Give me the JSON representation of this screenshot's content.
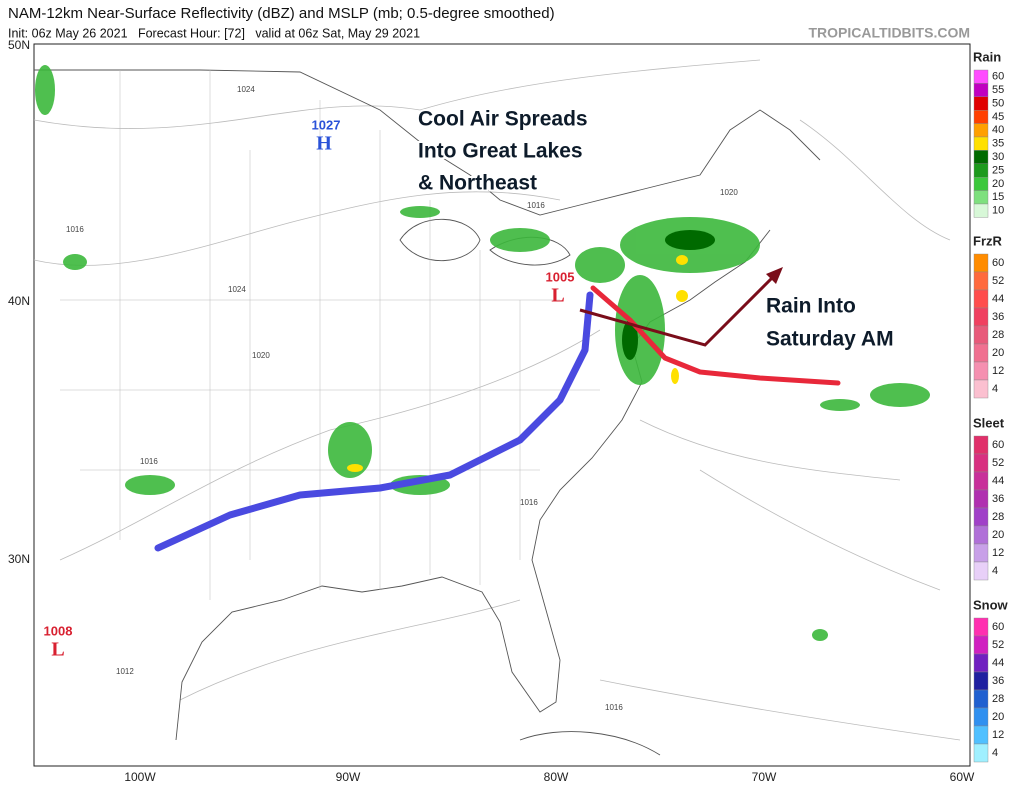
{
  "header": {
    "title": "NAM-12km Near-Surface Reflectivity (dBZ) and MSLP (mb; 0.5-degree smoothed)",
    "subtitle": "Init: 06z May 26 2021   Forecast Hour: [72]   valid at 06z Sat, May 29 2021",
    "watermark": "TROPICALTIDBITS.COM"
  },
  "map": {
    "lat_labels": [
      "50N",
      "40N",
      "30N"
    ],
    "lon_labels": [
      "100W",
      "90W",
      "80W",
      "70W",
      "60W"
    ],
    "pressure_centers": [
      {
        "value": "1027",
        "symbol": "H"
      },
      {
        "value": "1005",
        "symbol": "L"
      },
      {
        "value": "1008",
        "symbol": "L"
      }
    ],
    "isobar_labels": [
      "1024",
      "1016",
      "1024",
      "1020",
      "1016",
      "1016",
      "1020",
      "1012",
      "1016",
      "1016"
    ],
    "annotations": [
      {
        "lines": [
          "Cool Air Spreads",
          "Into Great Lakes",
          "& Northeast"
        ]
      },
      {
        "lines": [
          "Rain Into",
          "Saturday AM"
        ]
      }
    ]
  },
  "legend": [
    {
      "title": "Rain",
      "ticks": [
        60,
        55,
        50,
        45,
        40,
        35,
        30,
        25,
        20,
        15,
        10
      ],
      "colors": [
        "#ff4dff",
        "#c000c0",
        "#e00000",
        "#ff4000",
        "#ffa000",
        "#ffe000",
        "#006a00",
        "#1d9a1d",
        "#3cc83c",
        "#7ee07e",
        "#d8f8d8"
      ]
    },
    {
      "title": "FrzR",
      "ticks": [
        60,
        52,
        44,
        36,
        28,
        20,
        12,
        4
      ],
      "colors": [
        "#ff8c00",
        "#ff6a3d",
        "#ff4d4d",
        "#f04060",
        "#e85a7a",
        "#f07090",
        "#f590b0",
        "#fbc0d0"
      ]
    },
    {
      "title": "Sleet",
      "ticks": [
        60,
        52,
        44,
        36,
        28,
        20,
        12,
        4
      ],
      "colors": [
        "#e0306a",
        "#d83080",
        "#c8309a",
        "#b030b0",
        "#a040c8",
        "#b070d8",
        "#c8a0e8",
        "#e8d0f8"
      ]
    },
    {
      "title": "Snow",
      "ticks": [
        60,
        52,
        44,
        36,
        28,
        20,
        12,
        4
      ],
      "colors": [
        "#ff30b0",
        "#d020c0",
        "#7020c0",
        "#2020a0",
        "#2060d0",
        "#3090f0",
        "#50c0ff",
        "#a0f0ff"
      ]
    }
  ]
}
